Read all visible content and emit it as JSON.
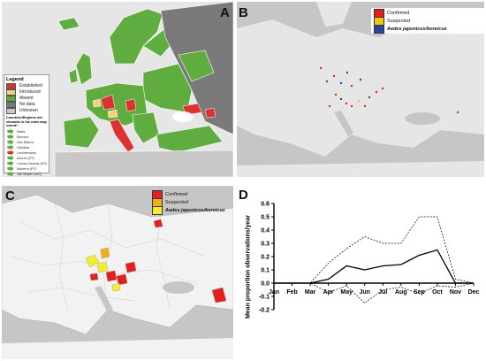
{
  "panels": {
    "a": {
      "letter": "A"
    },
    "b": {
      "letter": "B"
    },
    "c": {
      "letter": "C"
    },
    "d": {
      "letter": "D"
    }
  },
  "legend_a": {
    "title": "Legend",
    "items": [
      {
        "label": "Established",
        "color": "#e03131"
      },
      {
        "label": "Introduced",
        "color": "#f2d27a"
      },
      {
        "label": "Absent",
        "color": "#5fad3f"
      },
      {
        "label": "No data",
        "color": "#7a7a7a"
      },
      {
        "label": "Unknown",
        "color": "#c8c8c8"
      }
    ],
    "outside_title": "Countries/Regions not viewable in the main map extent*:",
    "outside_items": [
      "Malta",
      "Monaco",
      "San Marino",
      "Gibraltar",
      "Liechtenstein",
      "Azores (PT)",
      "Canary Islands (ES)",
      "Madeira (PT)",
      "Jan Mayen (NO)"
    ]
  },
  "legend_b": {
    "items": [
      {
        "label": "Confirmed",
        "color": "#e51e1e"
      },
      {
        "label": "Suspected",
        "color": "#f2c511"
      },
      {
        "label": "Aedes japonicus/koreicus",
        "color": "#2546a8"
      }
    ]
  },
  "legend_c": {
    "items": [
      {
        "label": "Confirmed",
        "color": "#e51e1e"
      },
      {
        "label": "Suspected",
        "color": "#f2b017"
      },
      {
        "label": "Aedes japonicus/koreicus",
        "color": "#f4ef2a"
      }
    ]
  },
  "chart_data": {
    "type": "line",
    "ylabel": "Mean proportion observations/year",
    "xlabel": "",
    "categories": [
      "Jan",
      "Feb",
      "Mar",
      "Apr",
      "May",
      "Jun",
      "Jul",
      "Aug",
      "Sep",
      "Oct",
      "Nov",
      "Dec"
    ],
    "ylim": [
      -0.2,
      0.6
    ],
    "yticks": [
      "-0.2",
      "-0.1",
      "0.0",
      "0.1",
      "0.2",
      "0.3",
      "0.4",
      "0.5",
      "0.6"
    ],
    "series": [
      {
        "style": "solid",
        "values": [
          0,
          0,
          0,
          0.03,
          0.13,
          0.1,
          0.13,
          0.14,
          0.21,
          0.25,
          0,
          0
        ]
      },
      {
        "style": "dashed-upper",
        "values": [
          0,
          0,
          0,
          0.15,
          0.26,
          0.35,
          0.3,
          0.3,
          0.5,
          0.5,
          0.03,
          0
        ]
      },
      {
        "style": "dashed-lower",
        "values": [
          0,
          0,
          0,
          -0.07,
          -0.02,
          -0.15,
          -0.05,
          -0.03,
          -0.08,
          -0.02,
          -0.03,
          0
        ]
      }
    ]
  }
}
